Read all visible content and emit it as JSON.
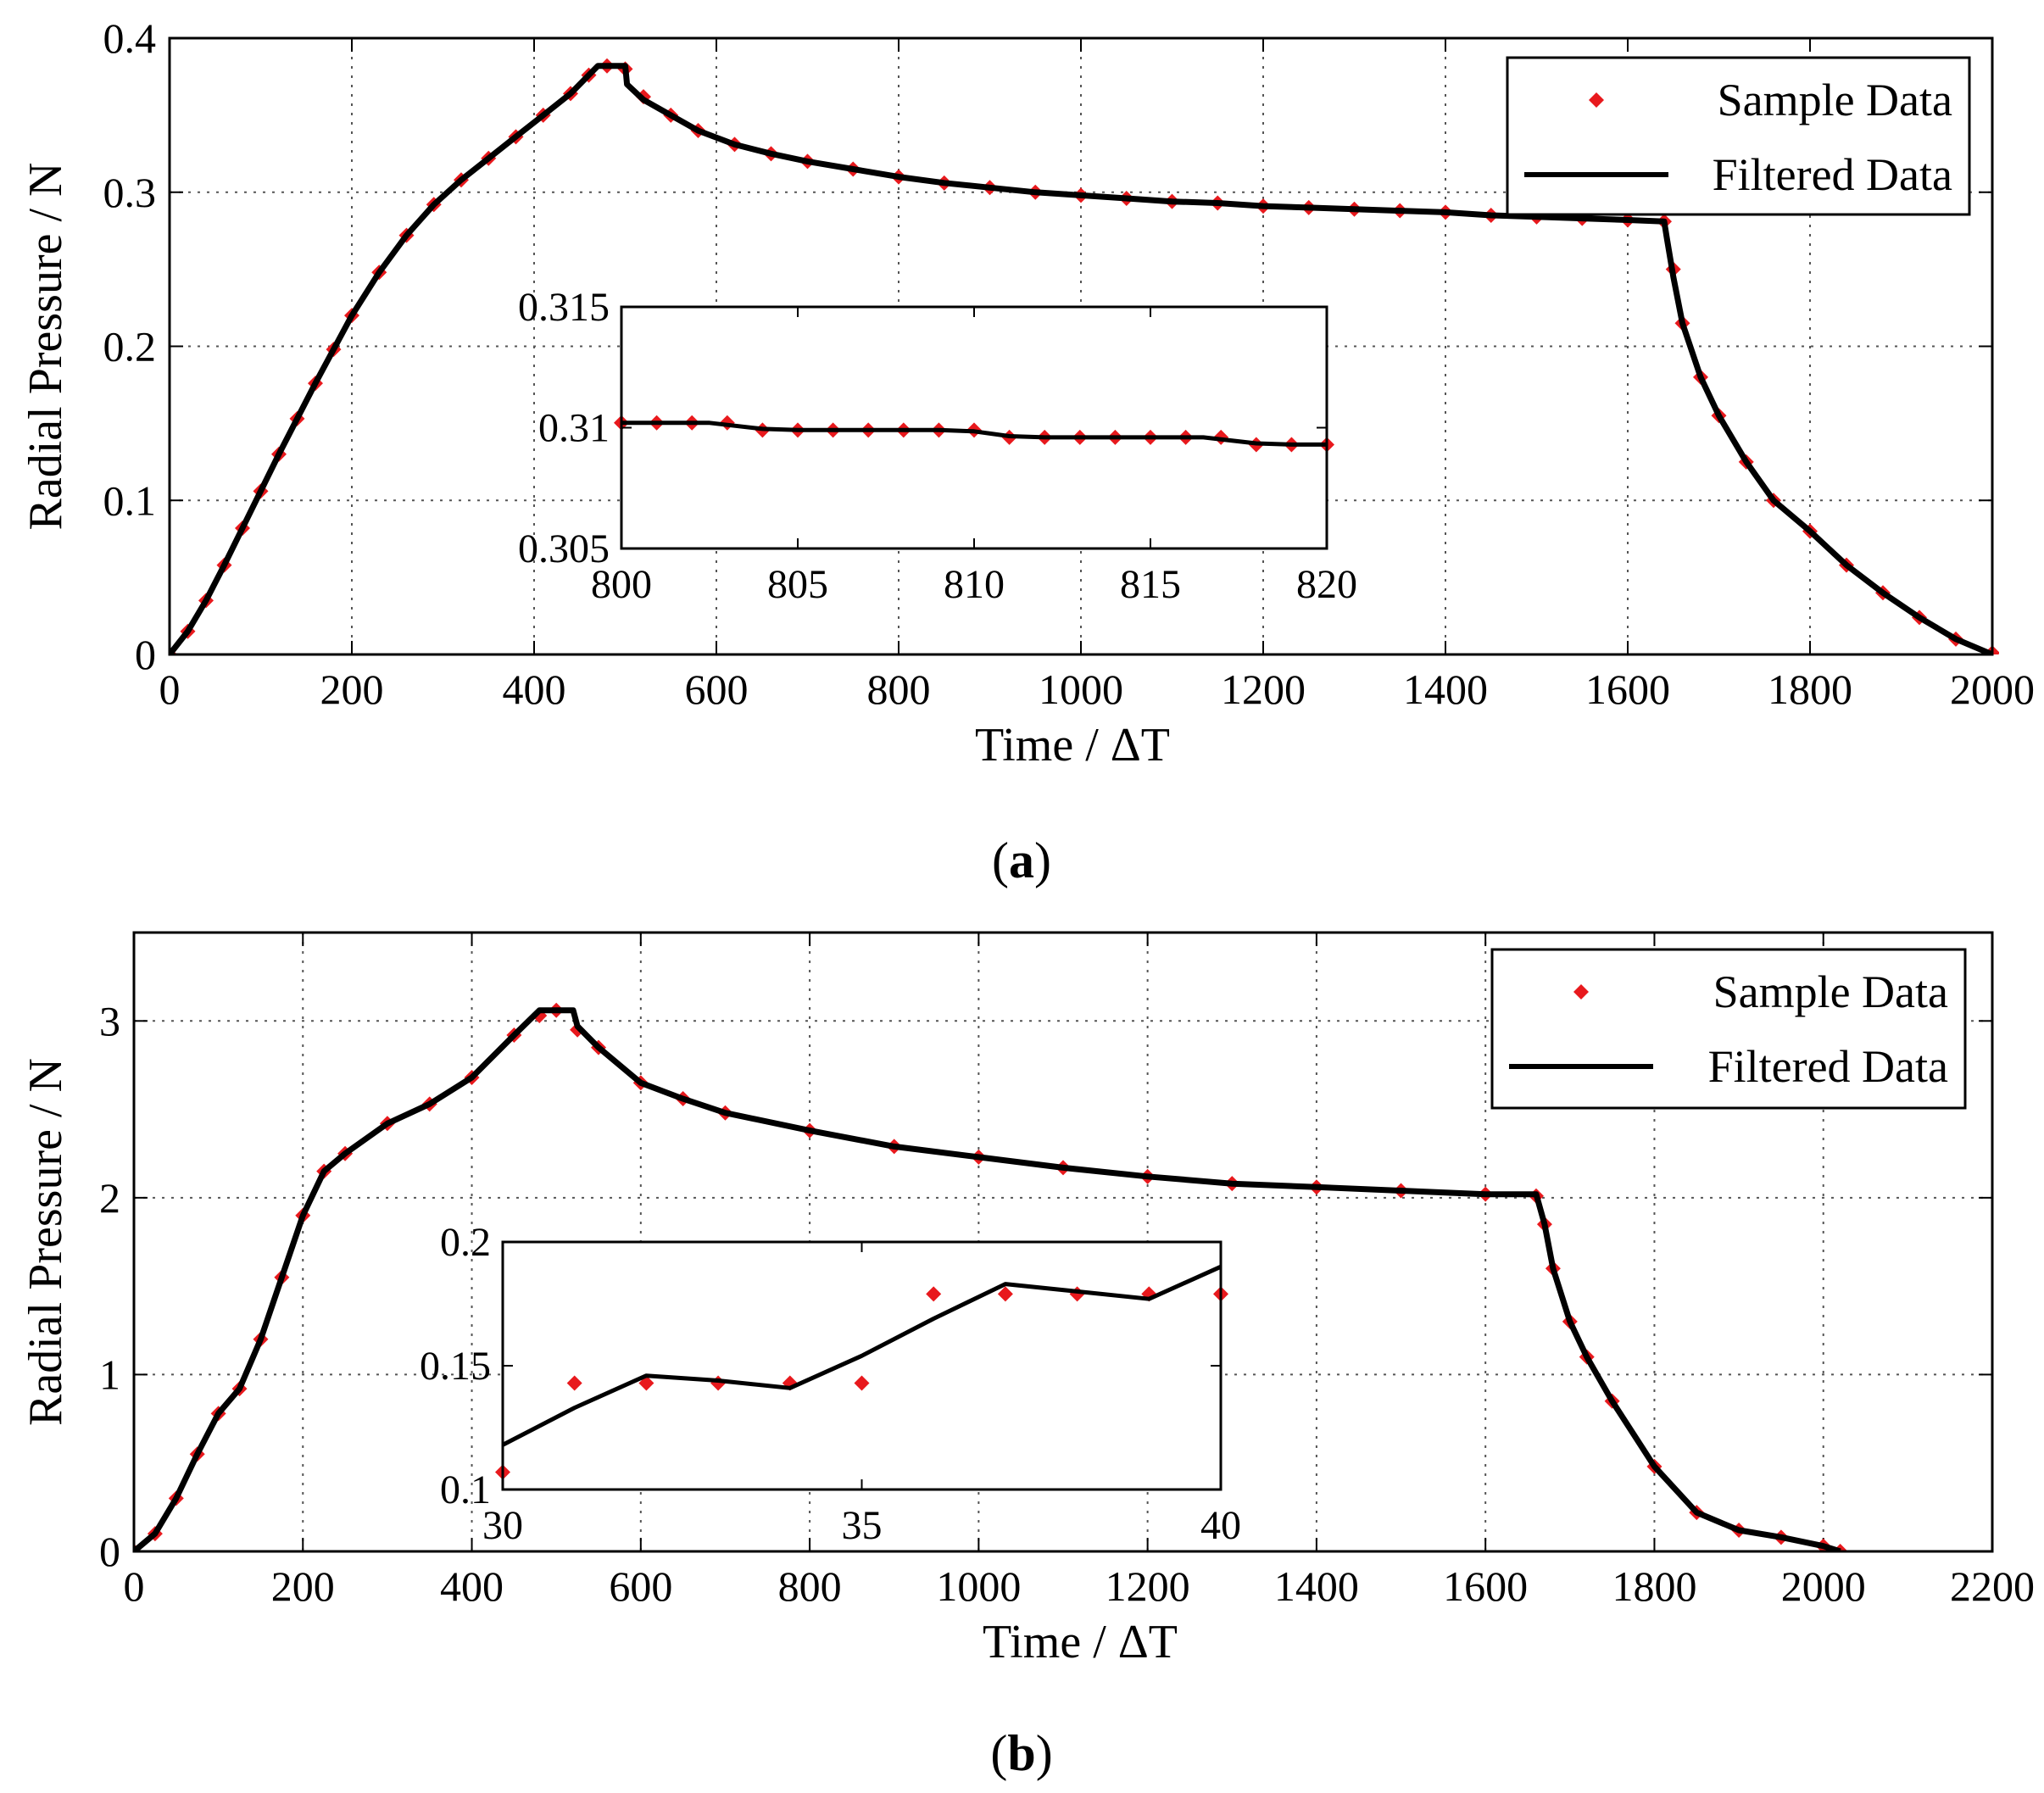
{
  "figure": {
    "colors": {
      "sample": "#e8191d",
      "filtered": "#000000",
      "grid": "#555555",
      "axis": "#000000"
    },
    "panels": [
      {
        "caption_letter": "a",
        "caption_open": "(",
        "caption_close": ")"
      },
      {
        "caption_letter": "b",
        "caption_open": "(",
        "caption_close": ")"
      }
    ]
  },
  "chart_data": [
    {
      "type": "line",
      "panel": "a",
      "title": "",
      "xlabel": "Time / ΔT",
      "ylabel": "Radial Pressure / N",
      "xlim": [
        0,
        2000
      ],
      "ylim": [
        0,
        0.4
      ],
      "xticks": [
        0,
        200,
        400,
        600,
        800,
        1000,
        1200,
        1400,
        1600,
        1800,
        2000
      ],
      "xtick_labels": [
        "0",
        "200",
        "400",
        "600",
        "800",
        "1000",
        "1200",
        "1400",
        "1600",
        "1800",
        "2000"
      ],
      "yticks": [
        0,
        0.1,
        0.2,
        0.3,
        0.4
      ],
      "ytick_labels": [
        "0",
        "0.1",
        "0.2",
        "0.3",
        "0.4"
      ],
      "grid": true,
      "legend": {
        "position": "top-right",
        "entries": [
          "Sample Data",
          "Filtered Data"
        ]
      },
      "series": [
        {
          "name": "Sample Data",
          "style": "markers",
          "color": "#e8191d",
          "x": [
            0,
            20,
            40,
            60,
            80,
            100,
            120,
            140,
            160,
            180,
            200,
            230,
            260,
            290,
            320,
            350,
            380,
            410,
            440,
            460,
            480,
            500,
            520,
            550,
            580,
            620,
            660,
            700,
            750,
            800,
            850,
            900,
            950,
            1000,
            1050,
            1100,
            1150,
            1200,
            1250,
            1300,
            1350,
            1400,
            1450,
            1500,
            1550,
            1600,
            1640,
            1650,
            1660,
            1680,
            1700,
            1730,
            1760,
            1800,
            1840,
            1880,
            1920,
            1960,
            2000
          ],
          "y": [
            0,
            0.015,
            0.035,
            0.058,
            0.082,
            0.106,
            0.13,
            0.153,
            0.176,
            0.198,
            0.22,
            0.248,
            0.272,
            0.292,
            0.308,
            0.322,
            0.336,
            0.35,
            0.364,
            0.376,
            0.382,
            0.38,
            0.362,
            0.35,
            0.34,
            0.331,
            0.325,
            0.32,
            0.315,
            0.31,
            0.306,
            0.303,
            0.3,
            0.298,
            0.296,
            0.294,
            0.293,
            0.291,
            0.29,
            0.289,
            0.288,
            0.287,
            0.285,
            0.284,
            0.283,
            0.282,
            0.281,
            0.25,
            0.215,
            0.18,
            0.155,
            0.125,
            0.1,
            0.08,
            0.058,
            0.04,
            0.024,
            0.01,
            0.001
          ]
        },
        {
          "name": "Filtered Data",
          "style": "line",
          "color": "#000000",
          "x": [
            0,
            20,
            40,
            60,
            80,
            100,
            120,
            140,
            160,
            180,
            200,
            230,
            260,
            290,
            320,
            350,
            380,
            410,
            440,
            460,
            470,
            500,
            502,
            520,
            550,
            580,
            620,
            660,
            700,
            750,
            800,
            850,
            900,
            950,
            1000,
            1050,
            1100,
            1150,
            1200,
            1250,
            1300,
            1350,
            1400,
            1450,
            1500,
            1550,
            1600,
            1640,
            1643,
            1650,
            1660,
            1680,
            1700,
            1730,
            1760,
            1800,
            1840,
            1880,
            1920,
            1960,
            2000
          ],
          "y": [
            0,
            0.015,
            0.035,
            0.058,
            0.082,
            0.106,
            0.13,
            0.153,
            0.176,
            0.198,
            0.22,
            0.248,
            0.272,
            0.292,
            0.308,
            0.322,
            0.336,
            0.35,
            0.364,
            0.376,
            0.382,
            0.382,
            0.37,
            0.36,
            0.35,
            0.34,
            0.331,
            0.325,
            0.32,
            0.315,
            0.31,
            0.306,
            0.303,
            0.3,
            0.298,
            0.296,
            0.294,
            0.293,
            0.291,
            0.29,
            0.289,
            0.288,
            0.287,
            0.285,
            0.284,
            0.283,
            0.282,
            0.281,
            0.27,
            0.245,
            0.215,
            0.18,
            0.155,
            0.125,
            0.1,
            0.08,
            0.058,
            0.04,
            0.024,
            0.01,
            0.0
          ]
        }
      ],
      "inset": {
        "xlim": [
          800,
          820
        ],
        "ylim": [
          0.305,
          0.315
        ],
        "xticks": [
          800,
          805,
          810,
          815,
          820
        ],
        "xtick_labels": [
          "800",
          "805",
          "810",
          "815",
          "820"
        ],
        "yticks": [
          0.305,
          0.31,
          0.315
        ],
        "ytick_labels": [
          "0.305",
          "0.31",
          "0.315"
        ],
        "grid": false,
        "series": [
          {
            "name": "Sample Data",
            "style": "markers",
            "color": "#e8191d",
            "x": [
              800,
              801,
              802,
              803,
              804,
              805,
              806,
              807,
              808,
              809,
              810,
              811,
              812,
              813,
              814,
              815,
              816,
              817,
              818,
              819,
              820
            ],
            "y": [
              0.3102,
              0.3102,
              0.3102,
              0.3102,
              0.3099,
              0.3099,
              0.3099,
              0.3099,
              0.3099,
              0.3099,
              0.3099,
              0.3096,
              0.3096,
              0.3096,
              0.3096,
              0.3096,
              0.3096,
              0.3096,
              0.3093,
              0.3093,
              0.3093
            ]
          },
          {
            "name": "Filtered Data",
            "style": "line",
            "color": "#000000",
            "x": [
              800,
              801,
              802,
              802.5,
              804,
              805,
              806,
              808,
              809,
              810,
              811,
              812,
              813,
              814,
              815,
              816,
              816.5,
              818,
              819,
              820
            ],
            "y": [
              0.3102,
              0.3102,
              0.3102,
              0.3102,
              0.30995,
              0.3099,
              0.3099,
              0.3099,
              0.3099,
              0.30985,
              0.30965,
              0.3096,
              0.3096,
              0.3096,
              0.3096,
              0.3096,
              0.3096,
              0.30935,
              0.3093,
              0.3093
            ]
          }
        ]
      }
    },
    {
      "type": "line",
      "panel": "b",
      "title": "",
      "xlabel": "Time / ΔT",
      "ylabel": "Radial Pressure / N",
      "xlim": [
        0,
        2200
      ],
      "ylim": [
        0,
        3.5
      ],
      "xticks": [
        0,
        200,
        400,
        600,
        800,
        1000,
        1200,
        1400,
        1600,
        1800,
        2000,
        2200
      ],
      "xtick_labels": [
        "0",
        "200",
        "400",
        "600",
        "800",
        "1000",
        "1200",
        "1400",
        "1600",
        "1800",
        "2000",
        "2200"
      ],
      "yticks": [
        0,
        1,
        2,
        3
      ],
      "ytick_labels": [
        "0",
        "1",
        "2",
        "3"
      ],
      "grid": true,
      "legend": {
        "position": "top-right",
        "entries": [
          "Sample Data",
          "Filtered Data"
        ]
      },
      "series": [
        {
          "name": "Sample Data",
          "style": "markers",
          "color": "#e8191d",
          "x": [
            0,
            25,
            50,
            75,
            100,
            125,
            150,
            175,
            200,
            225,
            250,
            300,
            350,
            400,
            450,
            480,
            500,
            525,
            550,
            600,
            650,
            700,
            800,
            900,
            1000,
            1100,
            1200,
            1300,
            1400,
            1500,
            1600,
            1660,
            1670,
            1680,
            1700,
            1720,
            1750,
            1800,
            1850,
            1900,
            1950,
            2000,
            2020
          ],
          "y": [
            0,
            0.1,
            0.3,
            0.55,
            0.78,
            0.92,
            1.2,
            1.55,
            1.9,
            2.15,
            2.25,
            2.42,
            2.53,
            2.68,
            2.92,
            3.03,
            3.06,
            2.95,
            2.85,
            2.65,
            2.56,
            2.48,
            2.38,
            2.29,
            2.23,
            2.17,
            2.12,
            2.08,
            2.06,
            2.04,
            2.02,
            2.01,
            1.85,
            1.6,
            1.3,
            1.1,
            0.85,
            0.48,
            0.22,
            0.12,
            0.08,
            0.03,
            0.0
          ]
        },
        {
          "name": "Filtered Data",
          "style": "line",
          "color": "#000000",
          "x": [
            0,
            25,
            50,
            75,
            100,
            125,
            150,
            175,
            200,
            225,
            250,
            300,
            350,
            400,
            450,
            480,
            520,
            525,
            550,
            600,
            650,
            700,
            800,
            900,
            1000,
            1100,
            1200,
            1300,
            1400,
            1500,
            1600,
            1660,
            1670,
            1680,
            1700,
            1720,
            1750,
            1800,
            1850,
            1900,
            1950,
            2000,
            2020
          ],
          "y": [
            0,
            0.1,
            0.3,
            0.55,
            0.78,
            0.92,
            1.2,
            1.55,
            1.9,
            2.15,
            2.25,
            2.42,
            2.53,
            2.68,
            2.92,
            3.06,
            3.06,
            2.97,
            2.85,
            2.65,
            2.56,
            2.48,
            2.38,
            2.29,
            2.23,
            2.17,
            2.12,
            2.08,
            2.06,
            2.04,
            2.02,
            2.02,
            1.85,
            1.6,
            1.3,
            1.1,
            0.85,
            0.48,
            0.22,
            0.12,
            0.08,
            0.03,
            0.0
          ]
        }
      ],
      "inset": {
        "xlim": [
          30,
          40
        ],
        "ylim": [
          0.1,
          0.2
        ],
        "xticks": [
          30,
          35,
          40
        ],
        "xtick_labels": [
          "30",
          "35",
          "40"
        ],
        "yticks": [
          0.1,
          0.15,
          0.2
        ],
        "ytick_labels": [
          "0.1",
          "0.15",
          "0.2"
        ],
        "grid": false,
        "series": [
          {
            "name": "Sample Data",
            "style": "markers",
            "color": "#e8191d",
            "x": [
              30,
              31,
              32,
              33,
              34,
              35,
              36,
              37,
              38,
              39,
              40
            ],
            "y": [
              0.107,
              0.143,
              0.143,
              0.143,
              0.143,
              0.143,
              0.179,
              0.179,
              0.179,
              0.179,
              0.179
            ]
          },
          {
            "name": "Filtered Data",
            "style": "line",
            "color": "#000000",
            "x": [
              30,
              31,
              32,
              33,
              34,
              35,
              36,
              37,
              38,
              39,
              40
            ],
            "y": [
              0.118,
              0.133,
              0.146,
              0.144,
              0.141,
              0.154,
              0.169,
              0.183,
              0.18,
              0.177,
              0.19
            ]
          }
        ]
      }
    }
  ]
}
